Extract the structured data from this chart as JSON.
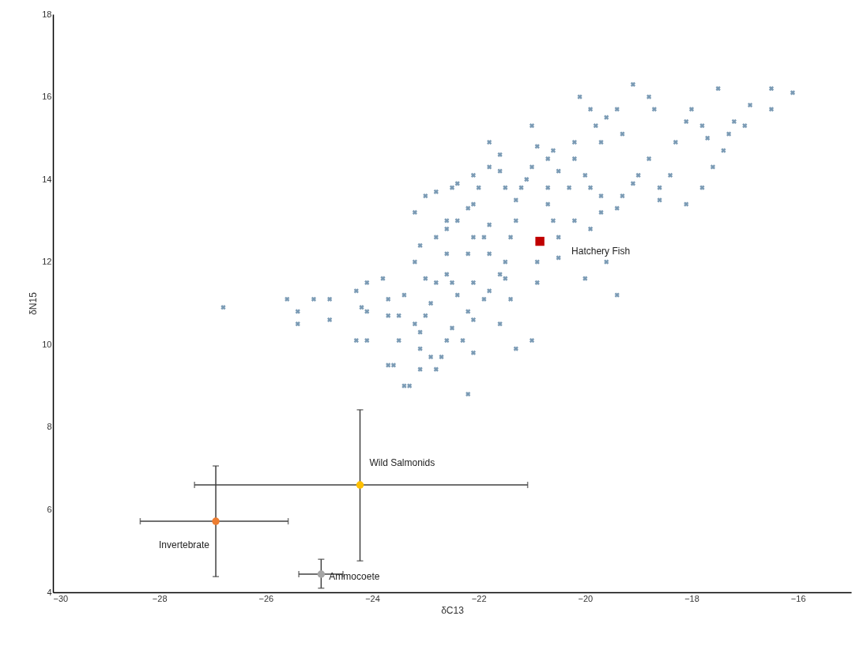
{
  "chart_data": {
    "type": "scatter",
    "xlabel": "δC13",
    "ylabel": "δN15",
    "xlim": [
      -30,
      -15
    ],
    "xticks": [
      -30,
      -28,
      -26,
      -24,
      -22,
      -20,
      -18,
      -16
    ],
    "ylim": [
      4,
      18
    ],
    "yticks": [
      4,
      6,
      8,
      10,
      12,
      14,
      16,
      18
    ],
    "grid": false,
    "series": [
      {
        "color": "#7b9bb5",
        "marker": "cross",
        "x": [
          -26.8,
          -25.6,
          -25.4,
          -25.4,
          -24.8,
          -24.8,
          -24.3,
          -24.2,
          -24.1,
          -23.8,
          -23.7,
          -24.3,
          -24.1,
          -23.5,
          -23.4,
          -23.2,
          -23.5,
          -23.7,
          -23.6,
          -23.4,
          -23.1,
          -23.1,
          -22.9,
          -22.8,
          -23.0,
          -22.6,
          -22.5,
          -22.4,
          -22.2,
          -22.1,
          -22.5,
          -22.6,
          -22.3,
          -22.1,
          -22.7,
          -22.9,
          -22.2,
          -22.1,
          -22.4,
          -22.6,
          -22.8,
          -23.1,
          -23.2,
          -23.2,
          -23.0,
          -22.8,
          -22.5,
          -22.4,
          -22.1,
          -22.0,
          -21.8,
          -21.9,
          -21.8,
          -21.6,
          -21.5,
          -21.4,
          -21.3,
          -21.3,
          -21.2,
          -21.1,
          -21.0,
          -21.5,
          -21.6,
          -21.8,
          -21.6,
          -21.8,
          -22.1,
          -22.2,
          -21.0,
          -20.9,
          -20.7,
          -20.6,
          -20.5,
          -20.7,
          -20.7,
          -20.6,
          -20.5,
          -20.9,
          -20.9,
          -21.4,
          -21.0,
          -21.3,
          -20.1,
          -19.9,
          -19.8,
          -19.6,
          -19.4,
          -19.3,
          -19.1,
          -18.8,
          -18.7,
          -18.3,
          -18.1,
          -18.0,
          -17.8,
          -17.7,
          -17.5,
          -17.4,
          -17.3,
          -17.2,
          -17.0,
          -16.9,
          -16.5,
          -17.6,
          -17.8,
          -18.1,
          -18.6,
          -18.6,
          -18.4,
          -18.8,
          -19.0,
          -19.1,
          -19.3,
          -19.4,
          -19.7,
          -19.9,
          -20.0,
          -20.2,
          -20.3,
          -20.2,
          -19.9,
          -19.7,
          -19.6,
          -19.4,
          -20.0,
          -20.5,
          -22.2,
          -23.3,
          -21.6,
          -23.7,
          -25.1,
          -24.1,
          -21.9,
          -21.5,
          -22.8,
          -23.1,
          -22.6,
          -22.1,
          -21.8,
          -22.6,
          -23.0,
          -16.5,
          -16.1,
          -20.2,
          -19.7
        ],
        "values": [
          10.9,
          11.1,
          10.8,
          10.5,
          11.1,
          10.6,
          11.3,
          10.9,
          11.5,
          11.6,
          11.1,
          10.1,
          10.1,
          10.7,
          11.2,
          10.5,
          10.1,
          9.5,
          9.5,
          9.0,
          9.9,
          10.3,
          11.0,
          11.5,
          11.6,
          11.7,
          11.5,
          11.2,
          10.8,
          10.6,
          10.4,
          10.1,
          10.1,
          9.8,
          9.7,
          9.7,
          12.2,
          12.6,
          13.0,
          12.8,
          12.6,
          12.4,
          12.0,
          13.2,
          13.6,
          13.7,
          13.8,
          13.9,
          13.4,
          13.8,
          12.9,
          12.6,
          12.2,
          11.7,
          12.0,
          12.6,
          13.0,
          13.5,
          13.8,
          14.0,
          14.3,
          13.8,
          14.2,
          14.9,
          14.6,
          14.3,
          14.1,
          13.3,
          15.3,
          14.8,
          14.5,
          14.7,
          14.2,
          13.8,
          13.4,
          13.0,
          12.6,
          12.0,
          11.5,
          11.1,
          10.1,
          9.9,
          16.0,
          15.7,
          15.3,
          15.5,
          15.7,
          15.1,
          16.3,
          16.0,
          15.7,
          14.9,
          15.4,
          15.7,
          15.3,
          15.0,
          16.2,
          14.7,
          15.1,
          15.4,
          15.3,
          15.8,
          15.7,
          14.3,
          13.8,
          13.4,
          13.5,
          13.8,
          14.1,
          14.5,
          14.1,
          13.9,
          13.6,
          13.3,
          13.6,
          13.8,
          14.1,
          14.5,
          13.8,
          13.0,
          12.8,
          13.2,
          12.0,
          11.2,
          11.6,
          12.1,
          8.8,
          9.0,
          10.5,
          10.7,
          11.1,
          10.8,
          11.1,
          11.6,
          9.4,
          9.4,
          13.0,
          11.5,
          11.3,
          12.2,
          10.7,
          16.2,
          16.1,
          14.9,
          14.9
        ]
      },
      {
        "name": "Hatchery Fish",
        "color": "#c00000",
        "marker": "square",
        "x": [
          -20.85
        ],
        "values": [
          12.5
        ]
      },
      {
        "name": "Wild Salmonids",
        "color": "#ffc000",
        "marker": "circle",
        "x": [
          -24.23
        ],
        "values": [
          6.6
        ],
        "errors": [
          [
            4.76,
            8.42
          ]
        ],
        "xerrors": [
          [
            -27.34,
            -21.08
          ]
        ]
      },
      {
        "name": "Invertebrate",
        "color": "#ed7d31",
        "marker": "circle",
        "x": [
          -26.94
        ],
        "values": [
          5.72
        ],
        "errors": [
          [
            4.38,
            7.06
          ]
        ],
        "xerrors": [
          [
            -28.36,
            -25.58
          ]
        ]
      },
      {
        "name": "Ammocoete",
        "color": "#a5a5a5",
        "marker": "circle",
        "x": [
          -24.96
        ],
        "values": [
          4.44
        ],
        "errors": [
          [
            4.1,
            4.8
          ]
        ],
        "xerrors": [
          [
            -25.38,
            -24.55
          ]
        ]
      }
    ]
  }
}
